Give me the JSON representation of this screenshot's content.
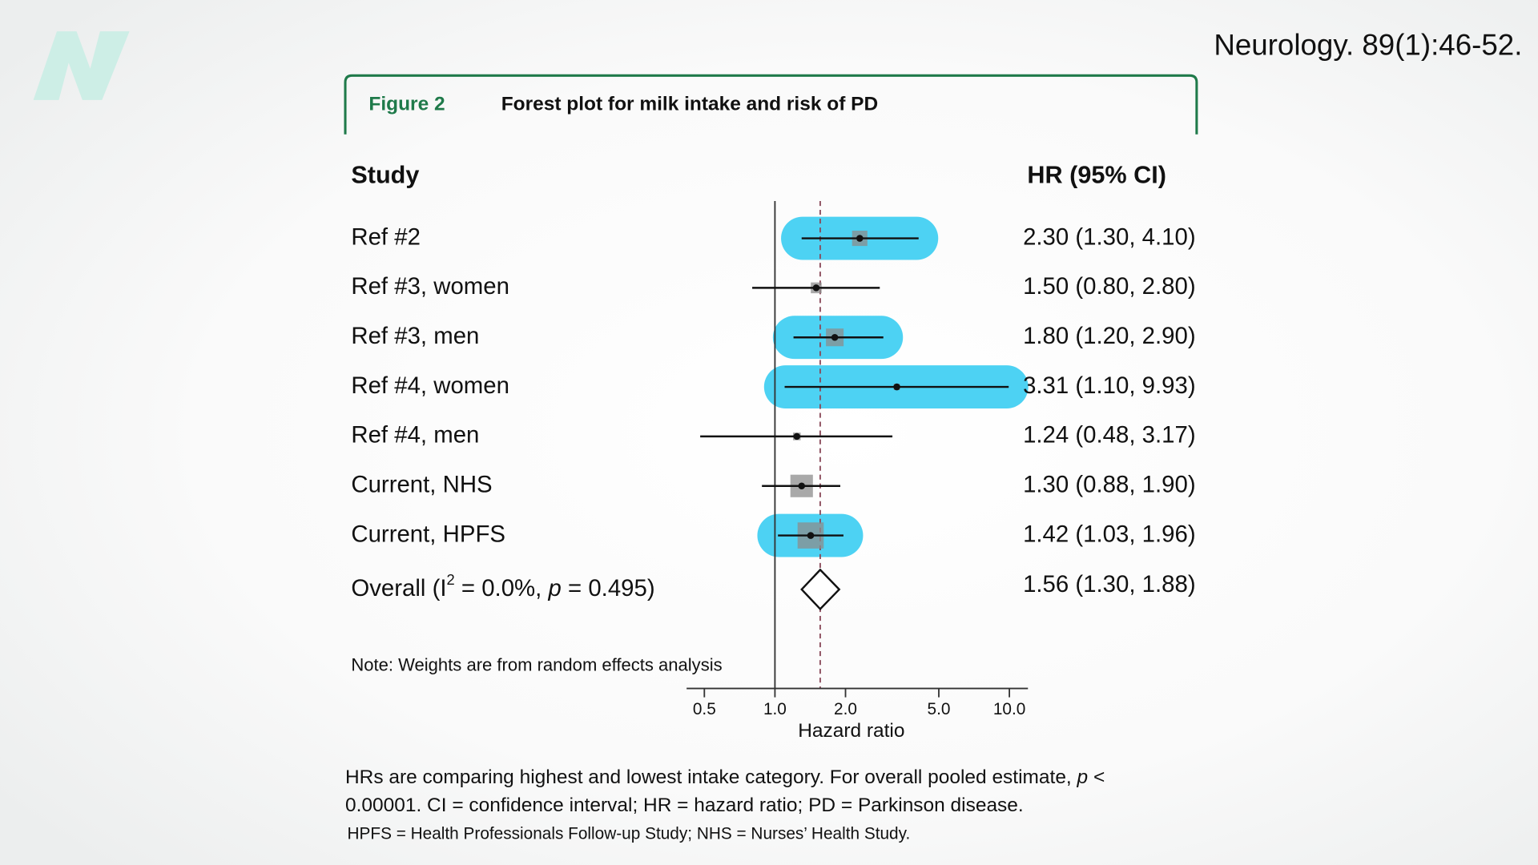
{
  "citation": "Neurology. 89(1):46-52.",
  "figure": {
    "label": "Figure 2",
    "title": "Forest plot for milk intake and risk of PD"
  },
  "chart_data": {
    "type": "forest",
    "study_header": "Study",
    "hr_header": "HR (95% CI)",
    "categories": [
      "Ref #2",
      "Ref #3, women",
      "Ref #3, men",
      "Ref #4, women",
      "Ref #4, men",
      "Current, NHS",
      "Current, HPFS"
    ],
    "values": [
      2.3,
      1.5,
      1.8,
      3.31,
      1.24,
      1.3,
      1.42
    ],
    "lower": [
      1.3,
      0.8,
      1.2,
      1.1,
      0.48,
      0.88,
      1.03
    ],
    "upper": [
      4.1,
      2.8,
      2.9,
      9.93,
      3.17,
      1.9,
      1.96
    ],
    "value_labels": [
      "2.30 (1.30, 4.10)",
      "1.50 (0.80, 2.80)",
      "1.80 (1.20, 2.90)",
      "3.31 (1.10, 9.93)",
      "1.24 (0.48, 3.17)",
      "1.30 (0.88, 1.90)",
      "1.42 (1.03, 1.96)"
    ],
    "weights": [
      12,
      6,
      16,
      2,
      3,
      26,
      35
    ],
    "highlighted": [
      true,
      false,
      true,
      true,
      false,
      false,
      true
    ],
    "highlight_color": "#4dd2f3",
    "square_color": "#8c8c8c",
    "overall": {
      "label": [
        "Overall (I",
        "2",
        " = 0.0%, ",
        "p",
        " = 0.495)"
      ],
      "value": 1.56,
      "lower": 1.3,
      "upper": 1.88,
      "value_label": "1.56 (1.30, 1.88)"
    },
    "null_value": 1,
    "note": "Note: Weights are from random effects analysis",
    "xlabel": "Hazard ratio",
    "log_x": true,
    "xlim": [
      0.42,
      12
    ],
    "xticks": [
      0.5,
      {
        "value": 1,
        "label": "1.0"
      },
      {
        "value": 2,
        "label": "2.0"
      },
      {
        "value": 5,
        "label": "5.0"
      },
      {
        "value": 10,
        "label": "10.0"
      }
    ]
  },
  "footnote": {
    "line1": [
      "HRs are comparing highest and lowest intake category. For overall pooled estimate, ",
      "p",
      " <"
    ],
    "line2": "0.00001. CI = confidence interval; HR = hazard ratio; PD = Parkinson disease.",
    "line3": "HPFS = Health Professionals Follow-up Study; NHS = Nurses’ Health Study."
  }
}
